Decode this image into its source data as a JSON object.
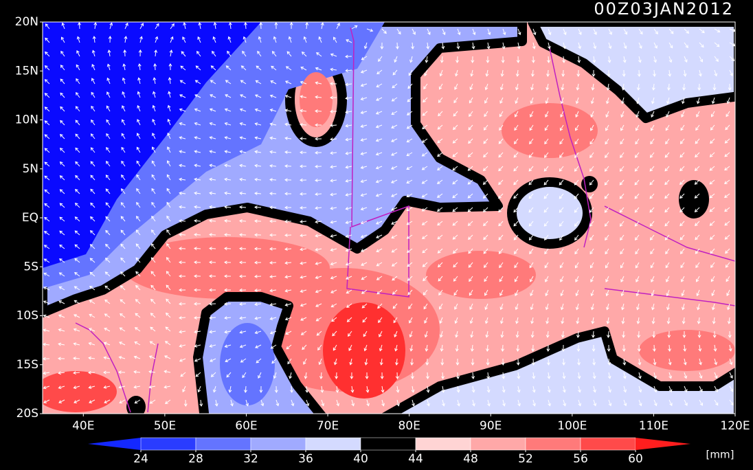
{
  "header": {
    "title": "00Z03JAN2012"
  },
  "axes": {
    "lat_labels": [
      "20N",
      "15N",
      "10N",
      "5N",
      "EQ",
      "5S",
      "10S",
      "15S",
      "20S"
    ],
    "lon_labels": [
      "40E",
      "50E",
      "60E",
      "70E",
      "80E",
      "90E",
      "100E",
      "110E",
      "120E"
    ]
  },
  "colorbar": {
    "ticks": [
      24,
      28,
      32,
      36,
      40,
      44,
      48,
      52,
      56,
      60
    ],
    "colors": [
      "#1428ff",
      "#2a3cff",
      "#6474ff",
      "#a0aaff",
      "#d4daff",
      "#000000",
      "#ffd4d4",
      "#ffa8a8",
      "#ff7a7a",
      "#ff4a4a",
      "#ff1e1e"
    ],
    "unit": "[mm]"
  }
}
